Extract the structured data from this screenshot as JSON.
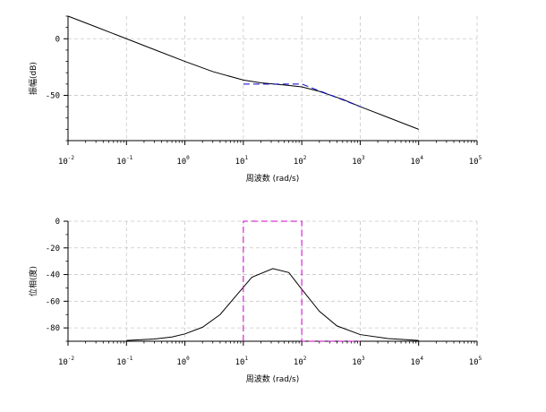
{
  "chart_data": [
    {
      "type": "line",
      "xscale": "log",
      "xlim": [
        0.01,
        100000
      ],
      "ylim": [
        -90,
        20
      ],
      "grid": true,
      "xlabel": "周波数 (rad/s)",
      "ylabel": "振幅(dB)",
      "x_ticks": [
        {
          "base": "10",
          "exp": "-2"
        },
        {
          "base": "10",
          "exp": "-1"
        },
        {
          "base": "10",
          "exp": "0"
        },
        {
          "base": "10",
          "exp": "1"
        },
        {
          "base": "10",
          "exp": "2"
        },
        {
          "base": "10",
          "exp": "3"
        },
        {
          "base": "10",
          "exp": "4"
        },
        {
          "base": "10",
          "exp": "5"
        }
      ],
      "y_ticks": [
        {
          "value": 0,
          "label": "0"
        },
        {
          "value": -50,
          "label": "-50"
        }
      ],
      "series": [
        {
          "color": "#000000",
          "style": "solid",
          "x": [
            0.01,
            0.03,
            0.1,
            0.3,
            1,
            3,
            10,
            20,
            50,
            100,
            200,
            500,
            1000,
            3000,
            10000
          ],
          "y": [
            20,
            10.5,
            0,
            -9.6,
            -20,
            -29,
            -36.5,
            -39,
            -40.8,
            -42.5,
            -46.5,
            -53.5,
            -60,
            -69.5,
            -80
          ]
        },
        {
          "color": "#0000cc",
          "style": "dashed",
          "x": [
            10,
            30,
            100,
            300,
            1000
          ],
          "y": [
            -40,
            -40,
            -40,
            -49.5,
            -60
          ]
        }
      ]
    },
    {
      "type": "line",
      "xscale": "log",
      "xlim": [
        0.01,
        100000
      ],
      "ylim": [
        -90,
        0
      ],
      "grid": true,
      "xlabel": "周波数 (rad/s)",
      "ylabel": "位相(度)",
      "x_ticks": [
        {
          "base": "10",
          "exp": "-2"
        },
        {
          "base": "10",
          "exp": "-1"
        },
        {
          "base": "10",
          "exp": "0"
        },
        {
          "base": "10",
          "exp": "1"
        },
        {
          "base": "10",
          "exp": "2"
        },
        {
          "base": "10",
          "exp": "3"
        },
        {
          "base": "10",
          "exp": "4"
        },
        {
          "base": "10",
          "exp": "5"
        }
      ],
      "y_ticks": [
        {
          "value": 0,
          "label": "0"
        },
        {
          "value": -20,
          "label": "-20"
        },
        {
          "value": -40,
          "label": "-40"
        },
        {
          "value": -60,
          "label": "-60"
        },
        {
          "value": -80,
          "label": "-80"
        }
      ],
      "series": [
        {
          "color": "#000000",
          "style": "solid",
          "x": [
            0.1,
            0.3,
            0.6,
            1,
            2,
            4,
            7,
            14,
            32,
            60,
            100,
            200,
            400,
            1000,
            3000,
            10000
          ],
          "y": [
            -89.4,
            -88.3,
            -86.8,
            -84.5,
            -79.5,
            -70,
            -57.5,
            -42,
            -35.5,
            -38.5,
            -51,
            -67.5,
            -78.5,
            -85,
            -88,
            -89.4
          ]
        },
        {
          "color": "#cc00cc",
          "style": "dashed",
          "x": [
            10,
            10,
            100,
            100,
            1000
          ],
          "y": [
            -90,
            0,
            0,
            -90,
            -90
          ]
        }
      ]
    }
  ]
}
